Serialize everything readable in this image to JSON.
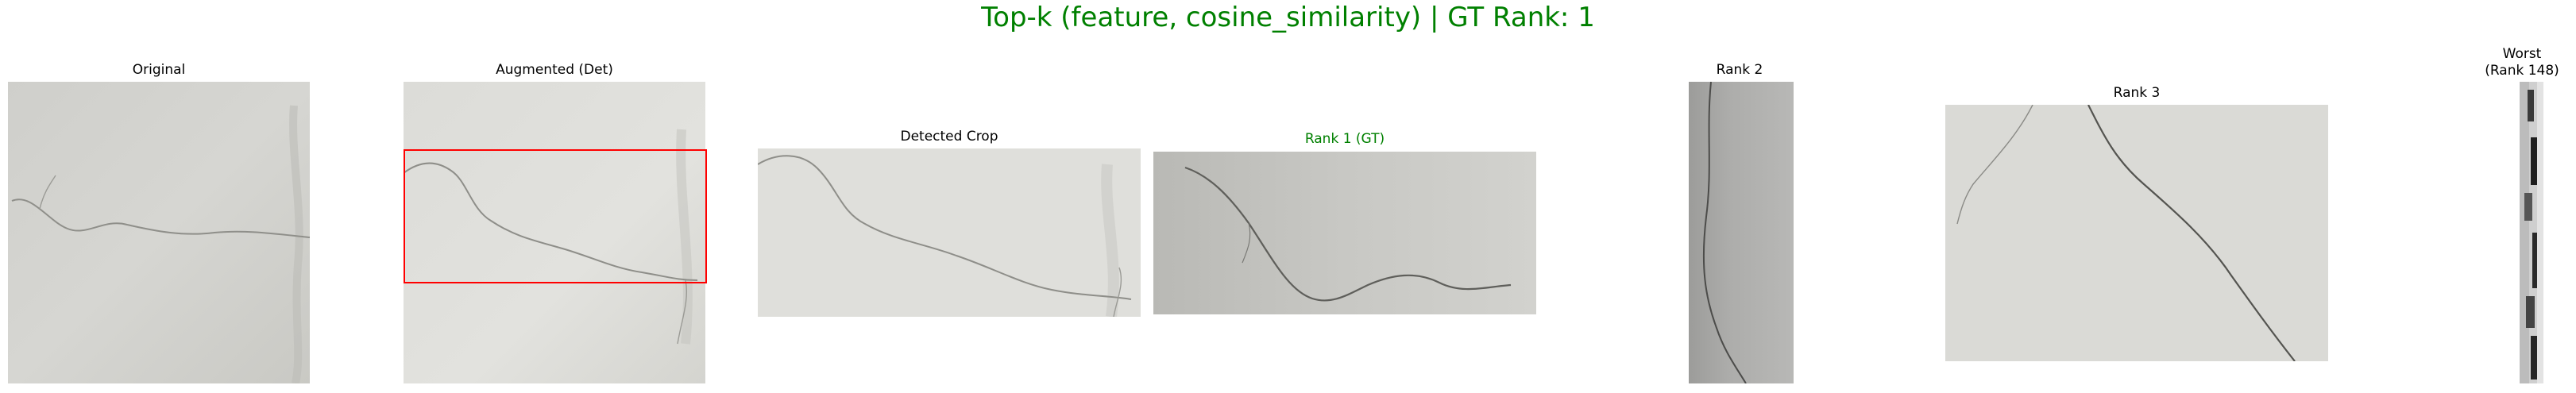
{
  "figure": {
    "title": "Top-k (feature, cosine_similarity) | GT Rank: 1",
    "title_color": "#008000"
  },
  "panels": [
    {
      "title": "Original",
      "title_color": "#000000",
      "content": "concrete surface with crack"
    },
    {
      "title": "Augmented (Det)",
      "title_color": "#000000",
      "content": "augmented concrete image with detection box",
      "box_color": "#ff0000"
    },
    {
      "title": "Detected Crop",
      "title_color": "#000000",
      "content": "cropped crack region"
    },
    {
      "title": "Rank 1 (GT)",
      "title_color": "#008000",
      "content": "retrieved match, ground truth"
    },
    {
      "title": "Rank 2",
      "title_color": "#000000",
      "content": "retrieved match"
    },
    {
      "title": "Rank 3",
      "title_color": "#000000",
      "content": "retrieved match"
    },
    {
      "title": "Worst\n(Rank 148)",
      "title_color": "#000000",
      "content": "lowest ranked match"
    }
  ]
}
